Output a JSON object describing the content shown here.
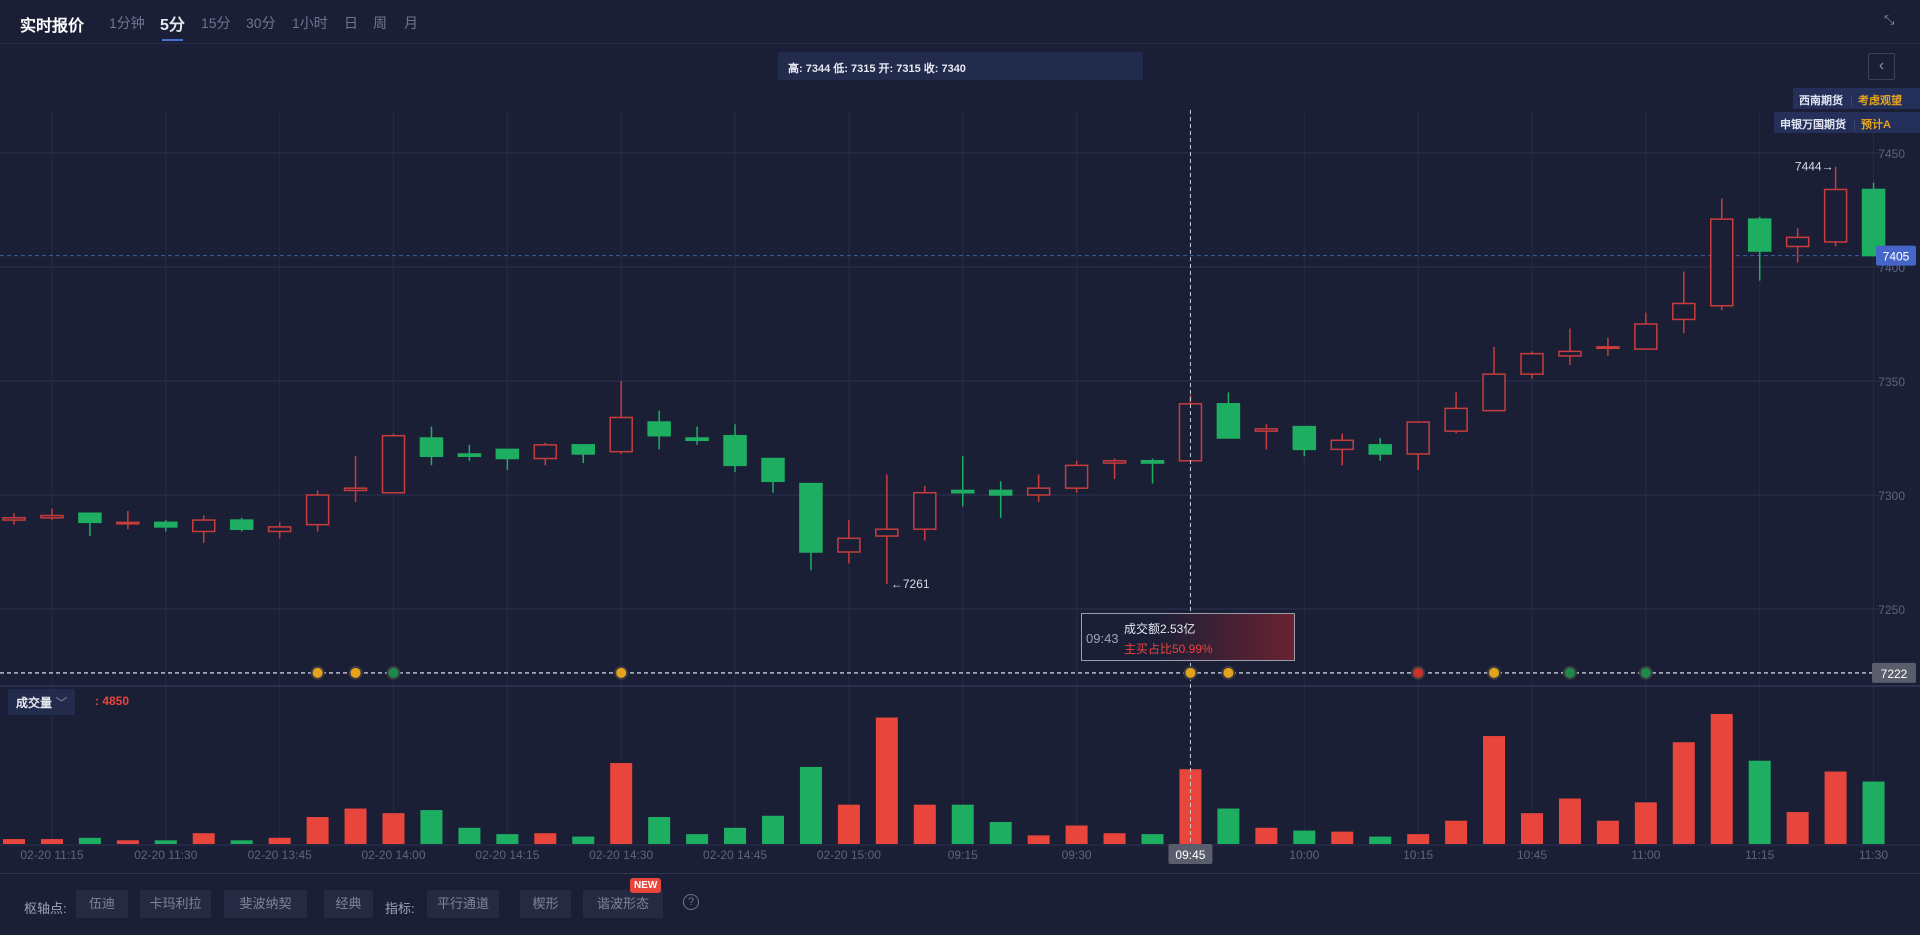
{
  "header": {
    "title": "实时报价",
    "tabs": [
      {
        "label": "1分钟",
        "active": false
      },
      {
        "label": "5分",
        "active": true
      },
      {
        "label": "15分",
        "active": false
      },
      {
        "label": "30分",
        "active": false
      },
      {
        "label": "1小时",
        "active": false
      },
      {
        "label": "日",
        "active": false
      },
      {
        "label": "周",
        "active": false
      },
      {
        "label": "月",
        "active": false
      }
    ],
    "shrink_icon": "minimize-arrows-icon"
  },
  "ohlc_text": "高: 7344 低: 7315 开: 7315 收: 7340",
  "collapse_icon": "chevron-left-icon",
  "brokers": [
    {
      "name": "西南期货",
      "advice": "考虑观望"
    },
    {
      "name": "申银万国期货",
      "advice": "预计A"
    }
  ],
  "volume_legend": {
    "label": "成交量",
    "value": ": 4850"
  },
  "tooltip": {
    "time": "09:43",
    "amount": "成交额2.53亿",
    "buy_ratio": "主买占比50.99%"
  },
  "colors": {
    "up": "#c83c3c",
    "down": "#1eae62",
    "vol_up": "#e8453c",
    "vol_down": "#1eae62",
    "accent": "#4a6cd4",
    "background": "#1b1f36"
  },
  "chart_data": {
    "type": "candlestick",
    "ylim": [
      7222,
      7460
    ],
    "y_ticks": [
      "7450",
      "7400",
      "7350",
      "7300",
      "7250"
    ],
    "grid": true,
    "candles": [
      [
        7289,
        7292,
        7287,
        7290
      ],
      [
        7290,
        7294,
        7289,
        7291
      ],
      [
        7292,
        7292,
        7282,
        7288
      ],
      [
        7288,
        7293,
        7285,
        7288
      ],
      [
        7288,
        7289,
        7284,
        7286
      ],
      [
        7284,
        7291,
        7279,
        7289
      ],
      [
        7289,
        7290,
        7284,
        7285
      ],
      [
        7284,
        7288,
        7281,
        7286
      ],
      [
        7287,
        7302,
        7284,
        7300
      ],
      [
        7302,
        7317,
        7297,
        7303
      ],
      [
        7301,
        7327,
        7301,
        7326
      ],
      [
        7325,
        7330,
        7313,
        7317
      ],
      [
        7318,
        7322,
        7315,
        7317
      ],
      [
        7320,
        7320,
        7311,
        7316
      ],
      [
        7316,
        7323,
        7313,
        7322
      ],
      [
        7322,
        7322,
        7314,
        7318
      ],
      [
        7319,
        7350,
        7318,
        7334
      ],
      [
        7332,
        7337,
        7320,
        7326
      ],
      [
        7325,
        7330,
        7322,
        7324
      ],
      [
        7326,
        7331,
        7310,
        7313
      ],
      [
        7316,
        7316,
        7301,
        7306
      ],
      [
        7305,
        7305,
        7267,
        7275
      ],
      [
        7275,
        7289,
        7270,
        7281
      ],
      [
        7282,
        7309,
        7261,
        7285
      ],
      [
        7285,
        7304,
        7280,
        7301
      ],
      [
        7302,
        7317,
        7295,
        7301
      ],
      [
        7302,
        7306,
        7290,
        7300
      ],
      [
        7300,
        7309,
        7297,
        7303
      ],
      [
        7303,
        7315,
        7301,
        7313
      ],
      [
        7314,
        7316,
        7307,
        7315
      ],
      [
        7315,
        7316,
        7305,
        7314
      ],
      [
        7315,
        7344,
        7315,
        7340
      ],
      [
        7340,
        7345,
        7325,
        7325
      ],
      [
        7328,
        7331,
        7320,
        7329
      ],
      [
        7330,
        7330,
        7317,
        7320
      ],
      [
        7320,
        7327,
        7313,
        7324
      ],
      [
        7322,
        7325,
        7315,
        7318
      ],
      [
        7318,
        7332,
        7311,
        7332
      ],
      [
        7328,
        7345,
        7327,
        7338
      ],
      [
        7337,
        7365,
        7337,
        7353
      ],
      [
        7353,
        7363,
        7351,
        7362
      ],
      [
        7361,
        7373,
        7357,
        7363
      ],
      [
        7365,
        7369,
        7361,
        7365
      ],
      [
        7364,
        7380,
        7364,
        7375
      ],
      [
        7377,
        7398,
        7371,
        7384
      ],
      [
        7383,
        7430,
        7381,
        7421
      ],
      [
        7421,
        7422,
        7394,
        7407
      ],
      [
        7409,
        7417,
        7402,
        7413
      ],
      [
        7411,
        7444,
        7409,
        7434
      ],
      [
        7434,
        7437,
        7405,
        7405
      ]
    ],
    "candle_fields": [
      "open",
      "high",
      "low",
      "close"
    ],
    "volumes": [
      320,
      320,
      400,
      240,
      240,
      700,
      240,
      400,
      1750,
      2300,
      2000,
      2200,
      1050,
      640,
      700,
      480,
      5250,
      1750,
      640,
      1050,
      1830,
      5000,
      2550,
      8200,
      2550,
      2550,
      1430,
      560,
      1200,
      700,
      640,
      4850,
      2300,
      1050,
      870,
      800,
      480,
      640,
      1510,
      7000,
      2000,
      2950,
      1510,
      2700,
      6600,
      8430,
      5400,
      2070,
      4700,
      4050
    ],
    "x_labels": [
      {
        "i": 1,
        "label": "02-20 11:15"
      },
      {
        "i": 4,
        "label": "02-20 11:30"
      },
      {
        "i": 7,
        "label": "02-20 13:45"
      },
      {
        "i": 10,
        "label": "02-20 14:00"
      },
      {
        "i": 13,
        "label": "02-20 14:15"
      },
      {
        "i": 16,
        "label": "02-20 14:30"
      },
      {
        "i": 19,
        "label": "02-20 14:45"
      },
      {
        "i": 22,
        "label": "02-20 15:00"
      },
      {
        "i": 25,
        "label": "09:15"
      },
      {
        "i": 28,
        "label": "09:30"
      },
      {
        "i": 31,
        "label": "09:45",
        "highlight": true
      },
      {
        "i": 34,
        "label": "10:00"
      },
      {
        "i": 37,
        "label": "10:15"
      },
      {
        "i": 40,
        "label": "10:45"
      },
      {
        "i": 43,
        "label": "11:00"
      },
      {
        "i": 46,
        "label": "11:15"
      },
      {
        "i": 49,
        "label": "11:30"
      }
    ],
    "last_price": "7405",
    "low_line": "7222",
    "annotations": [
      {
        "i": 48,
        "label": "7444→",
        "side": "left",
        "price": 7444
      },
      {
        "i": 23,
        "label": "←7261",
        "side": "right",
        "price": 7261
      }
    ],
    "crosshair_index": 31,
    "event_markers": [
      {
        "i": 8,
        "type": "orange"
      },
      {
        "i": 9,
        "type": "orange"
      },
      {
        "i": 10,
        "type": "green"
      },
      {
        "i": 16,
        "type": "orange"
      },
      {
        "i": 31,
        "type": "orange"
      },
      {
        "i": 32,
        "type": "orange"
      },
      {
        "i": 37,
        "type": "red"
      },
      {
        "i": 39,
        "type": "orange"
      },
      {
        "i": 41,
        "type": "green"
      },
      {
        "i": 43,
        "type": "green"
      }
    ]
  },
  "bottom_bar": {
    "pivot_label": "枢轴点:",
    "pivot_buttons": [
      "伍迪",
      "卡玛利拉",
      "斐波纳契",
      "经典"
    ],
    "indicator_label": "指标:",
    "indicator_buttons": [
      "平行通道",
      "楔形",
      "谐波形态"
    ],
    "new_badge": "NEW",
    "help_icon": "question-circle-icon",
    "help_text": "?"
  }
}
